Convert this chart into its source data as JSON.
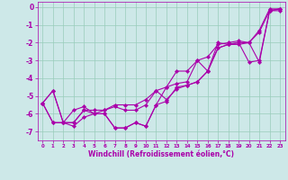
{
  "xlabel": "Windchill (Refroidissement éolien,°C)",
  "xlim": [
    -0.5,
    23.5
  ],
  "ylim": [
    -7.5,
    0.3
  ],
  "xticks": [
    0,
    1,
    2,
    3,
    4,
    5,
    6,
    7,
    8,
    9,
    10,
    11,
    12,
    13,
    14,
    15,
    16,
    17,
    18,
    19,
    20,
    21,
    22,
    23
  ],
  "yticks": [
    0,
    -1,
    -2,
    -3,
    -4,
    -5,
    -6,
    -7
  ],
  "bg_color": "#cde8e8",
  "line_color": "#aa00aa",
  "grid_color": "#99ccbb",
  "series": [
    [
      -5.4,
      -6.5,
      -6.5,
      -6.5,
      -5.8,
      -6.0,
      -6.0,
      -6.8,
      -6.8,
      -6.5,
      -6.7,
      -5.5,
      -5.3,
      -4.5,
      -4.4,
      -4.2,
      -3.6,
      -2.3,
      -2.1,
      -2.0,
      -2.0,
      -1.4,
      -0.2,
      -0.2
    ],
    [
      -5.4,
      -6.5,
      -6.5,
      -6.7,
      -6.2,
      -6.0,
      -5.8,
      -5.6,
      -5.8,
      -5.8,
      -5.5,
      -4.7,
      -5.2,
      -4.6,
      -4.4,
      -4.2,
      -3.6,
      -2.3,
      -2.1,
      -2.0,
      -3.1,
      -3.0,
      -0.2,
      -0.1
    ],
    [
      -5.4,
      -4.7,
      -6.5,
      -6.5,
      -5.8,
      -5.8,
      -5.8,
      -5.5,
      -5.5,
      -5.5,
      -5.2,
      -4.7,
      -4.5,
      -3.6,
      -3.6,
      -3.0,
      -2.8,
      -2.1,
      -2.0,
      -1.9,
      -2.0,
      -1.3,
      -0.1,
      -0.1
    ],
    [
      -5.4,
      -4.7,
      -6.5,
      -5.8,
      -5.6,
      -6.0,
      -6.0,
      -6.8,
      -6.8,
      -6.5,
      -6.7,
      -5.5,
      -4.5,
      -4.3,
      -4.2,
      -3.0,
      -3.6,
      -2.0,
      -2.1,
      -2.1,
      -2.0,
      -3.1,
      -0.2,
      -0.1
    ]
  ],
  "xlabel_fontsize": 5.5,
  "xtick_fontsize": 4.0,
  "ytick_fontsize": 5.5,
  "linewidth": 0.8,
  "markersize": 2.2
}
